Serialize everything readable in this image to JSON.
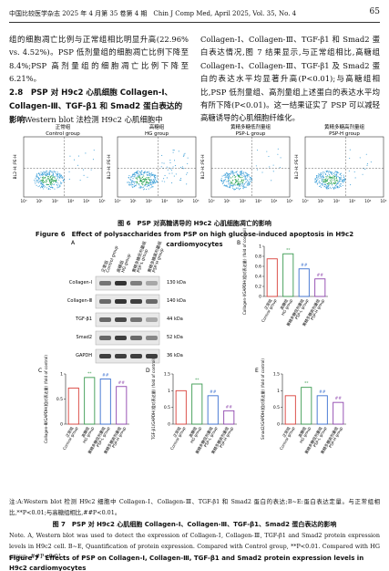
{
  "header": {
    "journal": "中国比较医学杂志 2025 年 4 月第 35 卷第 4 期　Chin J Comp Med, April 2025, Vol. 35, No. 4",
    "page": "65"
  },
  "body": {
    "left_paragraph": "组的细胞凋亡比例与正常组相比明显升高(22.96% vs. 4.52%)。PSP 低剂量组的细胞凋亡比例下降至 8.4%;PSP 高剂量组的细胞凋亡比例下降至 6.21%。",
    "heading": "2.8　PSP 对 H9c2 心肌细胞 Collagen-Ⅰ、Collagen-Ⅲ、TGF-β1 和 Smad2 蛋白表达的影响",
    "left_paragraph_2": "Western blot 法检测 H9c2 心肌细胞中",
    "right_paragraph": "Collagen-Ⅰ、Collagen-Ⅲ、TGF-β1 和 Smad2 蛋白表达情况,图 7 结果显示,与正常组相比,高糖组 Collagen-Ⅰ、Collagen-Ⅲ、TGF-β1 及 Smad2 蛋白的表达水平均显著升高(P<0.01);与高糖组相比,PSP 低剂量组、高剂量组上述蛋白的表达水平均有所下降(P<0.01)。这一结果证实了 PSP 可以减轻高糖诱导的心肌细胞纤维化。"
  },
  "groups": [
    {
      "cn": "正常组",
      "en": "Control group"
    },
    {
      "cn": "高糖组",
      "en": "HG group"
    },
    {
      "cn": "黄精多糖低剂量组",
      "en": "PSP-L group"
    },
    {
      "cn": "黄精多糖高剂量组",
      "en": "PSP-H group"
    }
  ],
  "figure6": {
    "ylabel": "BL2-H::PE-H",
    "xticks": [
      "10⁰",
      "10¹",
      "10²",
      "10³",
      "10⁴",
      "10⁵"
    ],
    "caption_cn": "图 6　PSP 对高糖诱导的 H9c2 心肌细胞凋亡的影响",
    "caption_en": "Figure 6　Effect of polysaccharides from PSP on high glucose-induced apoptosis in H9c2 cardiomyocytes"
  },
  "figure7": {
    "panel_a": "A",
    "blots": [
      {
        "name": "Collagen-Ⅰ",
        "size": "130 kDa"
      },
      {
        "name": "Collagen-Ⅲ",
        "size": "140 kDa"
      },
      {
        "name": "TGF-β1",
        "size": "44 kDa"
      },
      {
        "name": "Smad2",
        "size": "52 kDa"
      },
      {
        "name": "GAPDH",
        "size": "36 kDa"
      }
    ],
    "charts": [
      {
        "type": "bar",
        "panel": "B",
        "ylabel": "Collagen-Ⅰ/GAPDH(相对表达量) (fold of control)",
        "values": [
          0.75,
          0.85,
          0.55,
          0.35
        ],
        "marks": [
          null,
          "**",
          "##",
          "##"
        ],
        "colors": [
          "#d9403a",
          "#3a9a4f",
          "#3a6fd0",
          "#8e44ad"
        ],
        "ylim": [
          0,
          1.0
        ],
        "yticks": [
          0,
          0.2,
          0.4,
          0.6,
          0.8,
          1.0
        ]
      },
      {
        "type": "bar",
        "panel": "C",
        "ylabel": "Collagen-Ⅲ/GAPDH(相对表达量) (fold of control)",
        "values": [
          0.72,
          0.93,
          0.9,
          0.75
        ],
        "marks": [
          null,
          "**",
          "##",
          "##"
        ],
        "colors": [
          "#d9403a",
          "#3a9a4f",
          "#3a6fd0",
          "#8e44ad"
        ],
        "ylim": [
          0,
          1.0
        ],
        "yticks": [
          0,
          0.5,
          1.0
        ]
      },
      {
        "type": "bar",
        "panel": "D",
        "ylabel": "TGF-β1/GAPDH(相对表达量) (fold of control)",
        "values": [
          1.0,
          1.2,
          0.85,
          0.4
        ],
        "marks": [
          null,
          "**",
          "##",
          "##"
        ],
        "colors": [
          "#d9403a",
          "#3a9a4f",
          "#3a6fd0",
          "#8e44ad"
        ],
        "ylim": [
          0,
          1.5
        ],
        "yticks": [
          0,
          0.5,
          1.0,
          1.5
        ]
      },
      {
        "type": "bar",
        "panel": "E",
        "ylabel": "Smad2/GAPDH(相对表达量) (fold of control)",
        "values": [
          0.85,
          1.1,
          0.85,
          0.65
        ],
        "marks": [
          null,
          "**",
          "##",
          "##"
        ],
        "colors": [
          "#d9403a",
          "#3a9a4f",
          "#3a6fd0",
          "#8e44ad"
        ],
        "ylim": [
          0,
          1.5
        ],
        "yticks": [
          0,
          0.5,
          1.0,
          1.5
        ]
      }
    ],
    "note_cn": "注:A:Western blot 检测 H9c2 细胞中 Collagen-Ⅰ、Collagen-Ⅲ、TGF-β1 和 Smad2 蛋白的表达;B~E:蛋白表达定量。与正常组相比,**P<0.01;与高糖组相比,##P<0.01。",
    "caption_cn": "图 7　PSP 对 H9c2 心肌细胞 Collagen-Ⅰ、Collagen-Ⅲ、TGF-β1、Smad2 蛋白表达的影响",
    "note_en": "Note. A, Western blot was used to detect the expression of Collagen-Ⅰ, Collagen-Ⅲ, TGF-β1 and Smad2 protein expression levels in H9c2 cell. B~E, Quantification of protein expression. Compared with Control group, **P<0.01. Compared with HG group, ##P<0.01.",
    "caption_en": "Figure 7　Effects of PSP on Collagen-Ⅰ, Collagen-Ⅲ, TGF-β1 and Smad2 protein expression levels in H9c2 cardiomyocytes"
  }
}
